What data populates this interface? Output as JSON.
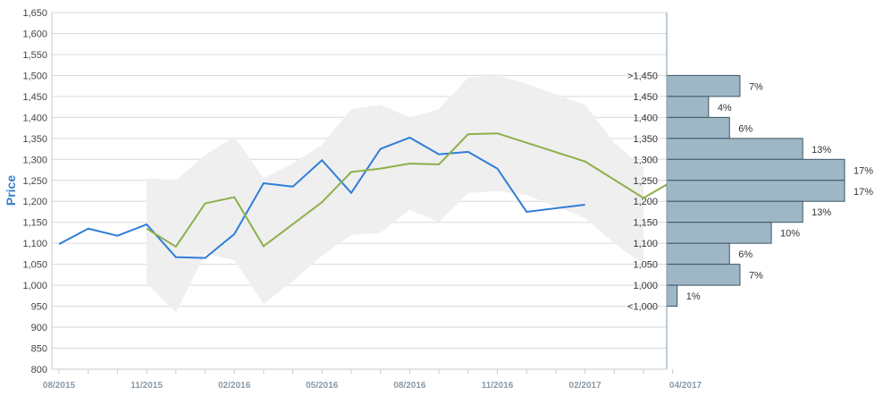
{
  "chart_data": {
    "type": "line",
    "ylabel": "Price",
    "ylim": [
      800,
      1650
    ],
    "y_ticks": [
      "800",
      "850",
      "900",
      "950",
      "1,000",
      "1,050",
      "1,100",
      "1,150",
      "1,200",
      "1,250",
      "1,300",
      "1,350",
      "1,400",
      "1,450",
      "1,500",
      "1,550",
      "1,600",
      "1,650"
    ],
    "x_ticks": [
      "08/2015",
      "11/2015",
      "02/2016",
      "05/2016",
      "08/2016",
      "11/2016",
      "02/2017",
      "04/2017"
    ],
    "grid": true,
    "colors": {
      "price": "#2f7ed8",
      "average": "#8db04a",
      "band": "#efefef",
      "histogram_fill": "#9fb7c5",
      "histogram_edge": "#3c5566",
      "grid": "#d9d9d9"
    },
    "series": [
      {
        "key": "price",
        "x": [
          "2015-08",
          "2015-09",
          "2015-10",
          "2015-11",
          "2015-12",
          "2016-01",
          "2016-02",
          "2016-03",
          "2016-04",
          "2016-05",
          "2016-06",
          "2016-07",
          "2016-08",
          "2016-09",
          "2016-10",
          "2016-11",
          "2016-12",
          "2017-02"
        ],
        "values": [
          1098,
          1135,
          1118,
          1145,
          1067,
          1065,
          1122,
          1243,
          1235,
          1298,
          1220,
          1325,
          1352,
          1312,
          1318,
          1278,
          1175,
          1192
        ]
      },
      {
        "key": "average",
        "x": [
          "2015-11",
          "2015-12",
          "2016-01",
          "2016-02",
          "2016-03",
          "2016-05",
          "2016-06",
          "2016-07",
          "2016-08",
          "2016-09",
          "2016-10",
          "2016-11",
          "2017-02",
          "2017-04",
          "2017-05"
        ],
        "values": [
          1135,
          1092,
          1195,
          1210,
          1093,
          1198,
          1270,
          1278,
          1290,
          1288,
          1360,
          1362,
          1295,
          1208,
          1240
        ]
      }
    ],
    "band": {
      "x": [
        "2015-11",
        "2015-12",
        "2016-01",
        "2016-02",
        "2016-03",
        "2016-04",
        "2016-05",
        "2016-06",
        "2016-07",
        "2016-08",
        "2016-09",
        "2016-10",
        "2016-11",
        "2016-12",
        "2017-02",
        "2017-03",
        "2017-04"
      ],
      "upper": [
        1255,
        1250,
        1310,
        1355,
        1255,
        1290,
        1335,
        1420,
        1430,
        1400,
        1420,
        1495,
        1500,
        1480,
        1430,
        1340,
        1280
      ],
      "lower": [
        1005,
        935,
        1075,
        1060,
        955,
        1010,
        1070,
        1120,
        1125,
        1180,
        1150,
        1220,
        1225,
        1215,
        1160,
        1100,
        1050
      ]
    },
    "histogram": {
      "bins": [
        {
          "label": ">1,450",
          "low": 1450,
          "high": 1500,
          "percent": 7,
          "percent_label": "7%"
        },
        {
          "label": "1,450",
          "low": 1400,
          "high": 1450,
          "percent": 4,
          "percent_label": "4%"
        },
        {
          "label": "1,400",
          "low": 1350,
          "high": 1400,
          "percent": 6,
          "percent_label": "6%"
        },
        {
          "label": "1,350",
          "low": 1300,
          "high": 1350,
          "percent": 13,
          "percent_label": "13%"
        },
        {
          "label": "1,300",
          "low": 1250,
          "high": 1300,
          "percent": 17,
          "percent_label": "17%"
        },
        {
          "label": "1,250",
          "low": 1200,
          "high": 1250,
          "percent": 17,
          "percent_label": "17%"
        },
        {
          "label": "1,200",
          "low": 1150,
          "high": 1200,
          "percent": 13,
          "percent_label": "13%"
        },
        {
          "label": "1,150",
          "low": 1100,
          "high": 1150,
          "percent": 10,
          "percent_label": "10%"
        },
        {
          "label": "1,100",
          "low": 1050,
          "high": 1100,
          "percent": 6,
          "percent_label": "6%"
        },
        {
          "label": "1,050",
          "low": 1000,
          "high": 1050,
          "percent": 7,
          "percent_label": "7%"
        },
        {
          "label": "1,000",
          "low": 950,
          "high": 1000,
          "percent": 1,
          "percent_label": "1%"
        },
        {
          "label": "<1,000",
          "low": 950,
          "high": 950,
          "percent": 0,
          "percent_label": ""
        }
      ]
    }
  }
}
